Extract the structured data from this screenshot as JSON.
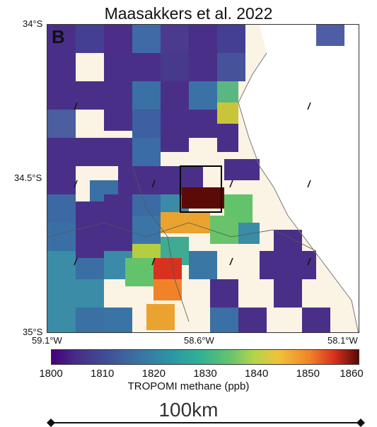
{
  "title": "Maasakkers et al. 2022",
  "panel_label": "B",
  "axes": {
    "lat_ticks": [
      "34°S",
      "34.5°S",
      "35°S"
    ],
    "lon_ticks": [
      "59.1°W",
      "58.6°W",
      "58.1°W"
    ]
  },
  "colorbar": {
    "label": "TROPOMI methane (ppb)",
    "min": 1800,
    "max": 1860,
    "ticks": [
      1800,
      1810,
      1820,
      1830,
      1840,
      1850,
      1860
    ]
  },
  "scale_bar": {
    "label": "100km"
  },
  "colors": {
    "land": "#fbf3e4",
    "water": "#ffffff",
    "box": "#000000"
  }
}
